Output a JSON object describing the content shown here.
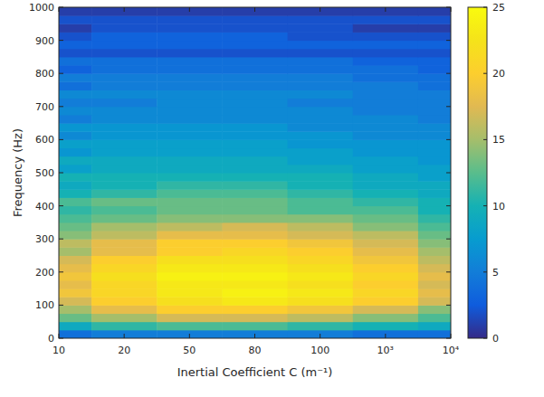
{
  "chart_data": {
    "type": "heatmap",
    "x_label": "Inertial Coefficient C (m⁻¹)",
    "y_label": "Frequency (Hz)",
    "categories": [
      "10",
      "20",
      "50",
      "80",
      "100",
      "10³",
      "10⁴"
    ],
    "y_bins": [
      0,
      25,
      50,
      75,
      100,
      125,
      150,
      175,
      200,
      225,
      250,
      275,
      300,
      325,
      350,
      375,
      400,
      425,
      450,
      475,
      500,
      525,
      550,
      575,
      600,
      625,
      650,
      675,
      700,
      725,
      750,
      775,
      800,
      825,
      850,
      875,
      900,
      925,
      950,
      975,
      1000
    ],
    "cells": [
      [
        4,
        5,
        5,
        5,
        5,
        4,
        4
      ],
      [
        9,
        11,
        12,
        12,
        11,
        10,
        9
      ],
      [
        13,
        15,
        17,
        17,
        16,
        14,
        12
      ],
      [
        15,
        18,
        20,
        20,
        19,
        17,
        14
      ],
      [
        17,
        20,
        22,
        23,
        22,
        20,
        17
      ],
      [
        19,
        21,
        23,
        24,
        23,
        21,
        18
      ],
      [
        18,
        21,
        23,
        23,
        22,
        20,
        17
      ],
      [
        19,
        22,
        24,
        24,
        23,
        21,
        18
      ],
      [
        18,
        21,
        23,
        23,
        22,
        20,
        17
      ],
      [
        17,
        20,
        22,
        22,
        21,
        19,
        16
      ],
      [
        15,
        18,
        20,
        21,
        20,
        18,
        15
      ],
      [
        16,
        18,
        20,
        20,
        19,
        17,
        14
      ],
      [
        14,
        16,
        18,
        18,
        17,
        16,
        13
      ],
      [
        13,
        15,
        16,
        17,
        16,
        14,
        12
      ],
      [
        12,
        13,
        14,
        14,
        14,
        13,
        11
      ],
      [
        11,
        12,
        13,
        13,
        12,
        12,
        10
      ],
      [
        12,
        13,
        13,
        13,
        12,
        11,
        10
      ],
      [
        10,
        11,
        12,
        12,
        11,
        10,
        9
      ],
      [
        9,
        10,
        11,
        11,
        10,
        9,
        9
      ],
      [
        10,
        10,
        10,
        10,
        10,
        9,
        8
      ],
      [
        8,
        9,
        9,
        9,
        9,
        8,
        8
      ],
      [
        9,
        9,
        9,
        9,
        8,
        8,
        7
      ],
      [
        7,
        8,
        8,
        8,
        8,
        7,
        7
      ],
      [
        8,
        8,
        8,
        8,
        7,
        7,
        7
      ],
      [
        6,
        7,
        7,
        7,
        7,
        6,
        6
      ],
      [
        7,
        7,
        7,
        7,
        6,
        6,
        6
      ],
      [
        5,
        6,
        6,
        6,
        6,
        6,
        5
      ],
      [
        6,
        6,
        6,
        6,
        6,
        5,
        5
      ],
      [
        5,
        5,
        6,
        6,
        5,
        5,
        5
      ],
      [
        6,
        6,
        6,
        6,
        6,
        5,
        5
      ],
      [
        4,
        5,
        5,
        5,
        5,
        5,
        4
      ],
      [
        5,
        5,
        5,
        5,
        5,
        4,
        4
      ],
      [
        3,
        4,
        4,
        4,
        4,
        4,
        3
      ],
      [
        4,
        4,
        4,
        4,
        4,
        3,
        3
      ],
      [
        2,
        2,
        2,
        2,
        2,
        2,
        2
      ],
      [
        3,
        3,
        3,
        3,
        3,
        3,
        3
      ],
      [
        2,
        3,
        3,
        3,
        2,
        2,
        2
      ],
      [
        1,
        2,
        2,
        2,
        2,
        1,
        1
      ],
      [
        2,
        2,
        2,
        2,
        2,
        2,
        2
      ],
      [
        1,
        1,
        1,
        1,
        1,
        1,
        1
      ]
    ],
    "ylim": [
      0,
      1000
    ],
    "yticks": [
      0,
      100,
      200,
      300,
      400,
      500,
      600,
      700,
      800,
      900,
      1000
    ],
    "colorbar_lim": [
      0,
      25
    ],
    "colorbar_ticks": [
      0,
      5,
      10,
      15,
      20,
      25
    ]
  }
}
